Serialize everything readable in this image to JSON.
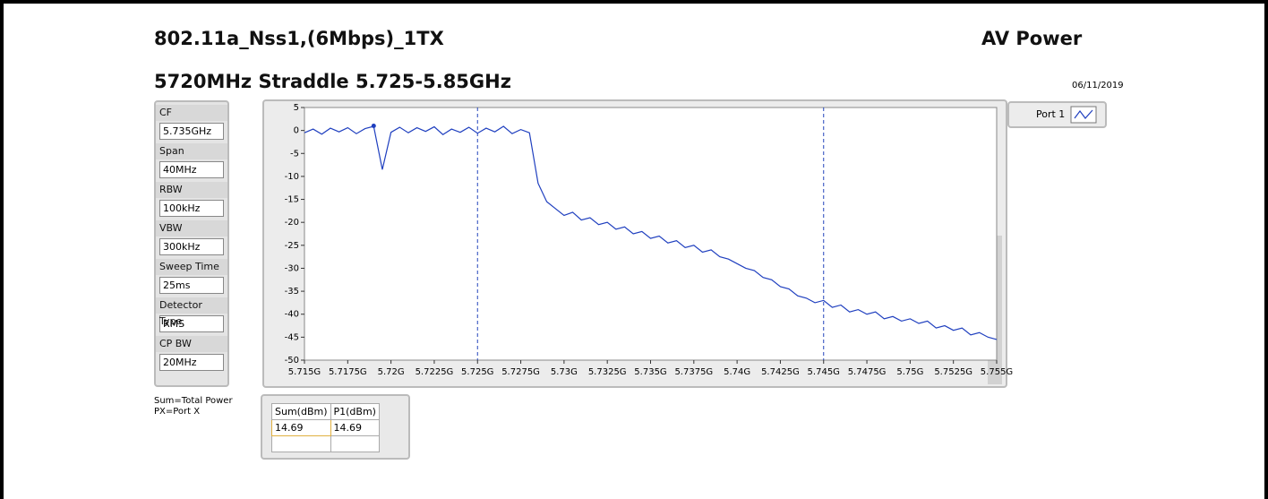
{
  "header": {
    "title": "802.11a_Nss1,(6Mbps)_1TX",
    "right_title": "AV Power",
    "subtitle": "5720MHz Straddle 5.725-5.85GHz",
    "date": "06/11/2019"
  },
  "settings": [
    {
      "label": "CF",
      "value": "5.735GHz"
    },
    {
      "label": "Span",
      "value": "40MHz"
    },
    {
      "label": "RBW",
      "value": "100kHz"
    },
    {
      "label": "VBW",
      "value": "300kHz"
    },
    {
      "label": "Sweep Time",
      "value": "25ms"
    },
    {
      "label": "Detector Type",
      "value": "RMS"
    },
    {
      "label": "CP BW",
      "value": "20MHz"
    }
  ],
  "notes": [
    "Sum=Total Power",
    "PX=Port X"
  ],
  "table": {
    "headers": [
      "Sum(dBm)",
      "P1(dBm)"
    ],
    "rows": [
      [
        "14.69",
        "14.69"
      ]
    ]
  },
  "chart_data": {
    "type": "line",
    "x": [
      5.715,
      5.7155,
      5.716,
      5.7165,
      5.717,
      5.7175,
      5.718,
      5.7185,
      5.719,
      5.7195,
      5.72,
      5.7205,
      5.721,
      5.7215,
      5.722,
      5.7225,
      5.723,
      5.7235,
      5.724,
      5.7245,
      5.725,
      5.7255,
      5.726,
      5.7265,
      5.727,
      5.7275,
      5.728,
      5.7285,
      5.729,
      5.7295,
      5.73,
      5.7305,
      5.731,
      5.7315,
      5.732,
      5.7325,
      5.733,
      5.7335,
      5.734,
      5.7345,
      5.735,
      5.7355,
      5.736,
      5.7365,
      5.737,
      5.7375,
      5.738,
      5.7385,
      5.739,
      5.7395,
      5.74,
      5.7405,
      5.741,
      5.7415,
      5.742,
      5.7425,
      5.743,
      5.7435,
      5.744,
      5.7445,
      5.745,
      5.7455,
      5.746,
      5.7465,
      5.747,
      5.7475,
      5.748,
      5.7485,
      5.749,
      5.7495,
      5.75,
      5.7505,
      5.751,
      5.7515,
      5.752,
      5.7525,
      5.753,
      5.7535,
      5.754,
      5.7545,
      5.755
    ],
    "series": [
      {
        "name": "Port 1",
        "color": "#1f3fbf",
        "values": [
          -0.5,
          0.3,
          -0.8,
          0.5,
          -0.3,
          0.6,
          -0.7,
          0.4,
          0.9,
          -8.5,
          -0.4,
          0.7,
          -0.5,
          0.6,
          -0.2,
          0.8,
          -0.9,
          0.3,
          -0.4,
          0.7,
          -0.6,
          0.5,
          -0.3,
          0.9,
          -0.7,
          0.2,
          -0.5,
          -11.5,
          -15.5,
          -17,
          -18.5,
          -17.8,
          -19.5,
          -19,
          -20.5,
          -20,
          -21.5,
          -21,
          -22.5,
          -22,
          -23.5,
          -23,
          -24.5,
          -24,
          -25.5,
          -25,
          -26.5,
          -26,
          -27.5,
          -28,
          -29,
          -30,
          -30.5,
          -32,
          -32.5,
          -34,
          -34.5,
          -36,
          -36.5,
          -37.5,
          -37,
          -38.5,
          -38,
          -39.5,
          -39,
          -40,
          -39.5,
          -41,
          -40.5,
          -41.5,
          -41,
          -42,
          -41.5,
          -43,
          -42.5,
          -43.5,
          -43,
          -44.5,
          -44,
          -45,
          -45.5
        ]
      }
    ],
    "marker": {
      "x": 5.719,
      "y": 1
    },
    "vlines": [
      5.725,
      5.745
    ],
    "xlim": [
      5.715,
      5.755
    ],
    "xticks": [
      {
        "value": 5.715,
        "label": "5.715G"
      },
      {
        "value": 5.7175,
        "label": "5.7175G"
      },
      {
        "value": 5.72,
        "label": "5.72G"
      },
      {
        "value": 5.7225,
        "label": "5.7225G"
      },
      {
        "value": 5.725,
        "label": "5.725G"
      },
      {
        "value": 5.7275,
        "label": "5.7275G"
      },
      {
        "value": 5.73,
        "label": "5.73G"
      },
      {
        "value": 5.7325,
        "label": "5.7325G"
      },
      {
        "value": 5.735,
        "label": "5.735G"
      },
      {
        "value": 5.7375,
        "label": "5.7375G"
      },
      {
        "value": 5.74,
        "label": "5.74G"
      },
      {
        "value": 5.7425,
        "label": "5.7425G"
      },
      {
        "value": 5.745,
        "label": "5.745G"
      },
      {
        "value": 5.7475,
        "label": "5.7475G"
      },
      {
        "value": 5.75,
        "label": "5.75G"
      },
      {
        "value": 5.7525,
        "label": "5.7525G"
      },
      {
        "value": 5.755,
        "label": "5.755G"
      }
    ],
    "ylim": [
      -50,
      5
    ],
    "yticks": [
      5,
      0,
      -5,
      -10,
      -15,
      -20,
      -25,
      -30,
      -35,
      -40,
      -45,
      -50
    ],
    "grid": false
  }
}
